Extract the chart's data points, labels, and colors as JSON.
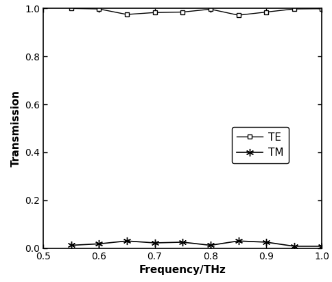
{
  "TE_x": [
    0.55,
    0.6,
    0.65,
    0.7,
    0.75,
    0.8,
    0.85,
    0.9,
    0.95,
    1.0
  ],
  "TE_y": [
    1.0,
    0.998,
    0.975,
    0.983,
    0.985,
    0.997,
    0.972,
    0.985,
    0.998,
    0.999
  ],
  "TM_x": [
    0.55,
    0.6,
    0.65,
    0.7,
    0.75,
    0.8,
    0.85,
    0.9,
    0.95,
    1.0
  ],
  "TM_y": [
    0.012,
    0.018,
    0.03,
    0.022,
    0.025,
    0.012,
    0.03,
    0.025,
    0.008,
    0.008
  ],
  "xlabel": "Frequency/THz",
  "ylabel": "Transmission",
  "xlim": [
    0.5,
    1.0
  ],
  "ylim": [
    0.0,
    1.0
  ],
  "xticks": [
    0.5,
    0.6,
    0.7,
    0.8,
    0.9,
    1.0
  ],
  "yticks": [
    0.0,
    0.2,
    0.4,
    0.6,
    0.8,
    1.0
  ],
  "legend_labels": [
    "TE",
    "TM"
  ],
  "line_color": "#000000",
  "background_color": "#ffffff",
  "fig_width": 4.84,
  "fig_height": 4.11,
  "dpi": 100
}
